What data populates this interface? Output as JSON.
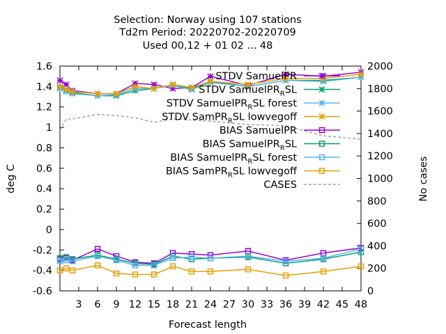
{
  "chart_data": {
    "type": "line",
    "title_lines": [
      "Selection: Norway using   107 stations",
      "Td2m   Period: 20220702-20220709",
      "Used  00,12  + 01 02 ... 48"
    ],
    "xlabel": "Forecast length",
    "ylabel": "deg C",
    "y2label": "No cases",
    "xlim": [
      0,
      48
    ],
    "ylim": [
      -0.6,
      1.6
    ],
    "y2lim": [
      0,
      2000
    ],
    "xticks": [
      3,
      6,
      9,
      12,
      15,
      18,
      21,
      24,
      27,
      30,
      33,
      36,
      39,
      42,
      45,
      48
    ],
    "yticks": [
      -0.6,
      -0.4,
      -0.2,
      0,
      0.2,
      0.4,
      0.6,
      0.8,
      1,
      1.2,
      1.4,
      1.6
    ],
    "ytick_labels": [
      "-0.6",
      "-0.4",
      "-0.2",
      "0",
      "0.2",
      "0.4",
      "0.6",
      "0.8",
      "1",
      "1.2",
      "1.4",
      "1.6"
    ],
    "y2ticks": [
      0,
      200,
      400,
      600,
      800,
      1000,
      1200,
      1400,
      1600,
      1800,
      2000
    ],
    "grid": false,
    "legend_position": "top-right",
    "x": [
      0,
      1,
      2,
      6,
      9,
      12,
      15,
      18,
      21,
      24,
      30,
      36,
      42,
      48
    ],
    "series": [
      {
        "legend_base": "STDV SamuelPR",
        "legend_sub": "",
        "legend_tail": "",
        "axis": "y1",
        "marker": "x",
        "color": "#9400d3",
        "values": [
          1.46,
          1.42,
          1.36,
          1.33,
          1.33,
          1.43,
          1.42,
          1.38,
          1.39,
          1.5,
          1.41,
          1.52,
          1.5,
          1.54
        ]
      },
      {
        "legend_base": "STDV SamuelPR",
        "legend_sub": "R",
        "legend_tail": "SL",
        "axis": "y1",
        "marker": "x",
        "color": "#009e73",
        "values": [
          1.39,
          1.36,
          1.34,
          1.31,
          1.31,
          1.36,
          1.38,
          1.42,
          1.38,
          1.45,
          1.4,
          1.46,
          1.46,
          1.49
        ]
      },
      {
        "legend_base": "STDV SamuelPR",
        "legend_sub": "R",
        "legend_tail": "SL forest",
        "axis": "y1",
        "marker": "x",
        "color": "#56b4e9",
        "values": [
          1.38,
          1.35,
          1.33,
          1.31,
          1.32,
          1.38,
          1.38,
          1.41,
          1.37,
          1.44,
          1.4,
          1.46,
          1.45,
          1.49
        ]
      },
      {
        "legend_base": "STDV SamPR",
        "legend_sub": "R",
        "legend_tail": "SL lowvegoff",
        "axis": "y1",
        "marker": "x",
        "color": "#e69f00",
        "values": [
          1.4,
          1.37,
          1.35,
          1.33,
          1.33,
          1.4,
          1.38,
          1.42,
          1.39,
          1.45,
          1.42,
          1.48,
          1.48,
          1.52
        ]
      },
      {
        "legend_base": "BIAS SamuelPR",
        "legend_sub": "",
        "legend_tail": "",
        "axis": "y1",
        "marker": "square",
        "color": "#9400d3",
        "values": [
          -0.29,
          -0.28,
          -0.3,
          -0.19,
          -0.26,
          -0.32,
          -0.33,
          -0.23,
          -0.24,
          -0.25,
          -0.21,
          -0.3,
          -0.23,
          -0.18
        ]
      },
      {
        "legend_base": "BIAS SamuelPR",
        "legend_sub": "R",
        "legend_tail": "SL",
        "axis": "y1",
        "marker": "square",
        "color": "#009e73",
        "values": [
          -0.28,
          -0.27,
          -0.29,
          -0.25,
          -0.29,
          -0.33,
          -0.34,
          -0.26,
          -0.29,
          -0.28,
          -0.27,
          -0.33,
          -0.29,
          -0.22
        ]
      },
      {
        "legend_base": "BIAS SamuelPR",
        "legend_sub": "R",
        "legend_tail": "SL forest",
        "axis": "y1",
        "marker": "square",
        "color": "#56b4e9",
        "values": [
          -0.31,
          -0.3,
          -0.31,
          -0.26,
          -0.3,
          -0.35,
          -0.35,
          -0.28,
          -0.27,
          -0.28,
          -0.26,
          -0.31,
          -0.28,
          -0.19
        ]
      },
      {
        "legend_base": "BIAS SamPR",
        "legend_sub": "R",
        "legend_tail": "SL lowvegoff",
        "axis": "y1",
        "marker": "square",
        "color": "#e69f00",
        "values": [
          -0.4,
          -0.38,
          -0.4,
          -0.35,
          -0.43,
          -0.44,
          -0.44,
          -0.36,
          -0.41,
          -0.41,
          -0.39,
          -0.45,
          -0.41,
          -0.36
        ]
      },
      {
        "legend_base": "CASES",
        "legend_sub": "",
        "legend_tail": "",
        "axis": "y2",
        "marker": "none",
        "color": "#a0a0a0",
        "values": [
          1430,
          1530,
          1530,
          1570,
          1560,
          1540,
          1500,
          1530,
          1520,
          1510,
          1480,
          1470,
          1380,
          1350
        ]
      }
    ]
  }
}
